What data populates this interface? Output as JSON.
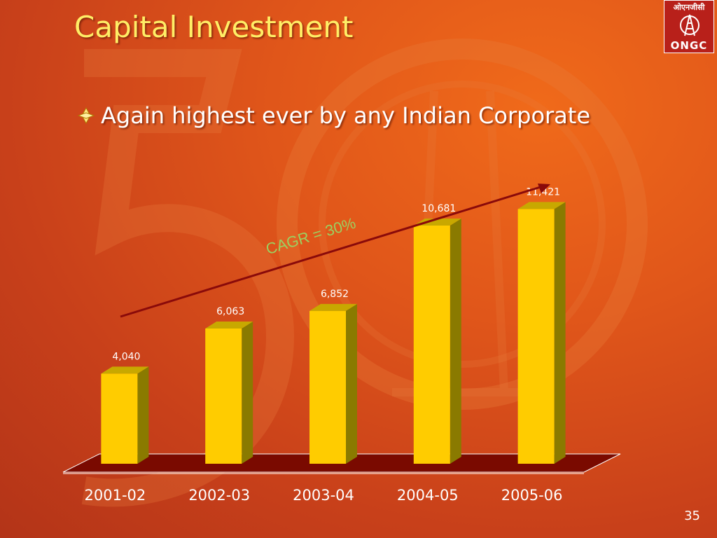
{
  "slide": {
    "title": "Capital Investment",
    "bullet": "Again highest ever by any Indian Corporate",
    "page_number": "35",
    "logo_text_top": "ओएनजीसी",
    "logo_text_bottom": "ONGC"
  },
  "chart_data": {
    "type": "bar",
    "categories": [
      "2001-02",
      "2002-03",
      "2003-04",
      "2004-05",
      "2005-06"
    ],
    "values": [
      4040,
      6063,
      6852,
      10681,
      11421
    ],
    "value_labels": [
      "4,040",
      "6,063",
      "6,852",
      "10,681",
      "11,421"
    ],
    "title": "",
    "xlabel": "",
    "ylabel": "",
    "ylim": [
      0,
      12000
    ],
    "grid": false,
    "annotation": "CAGR = 30%",
    "colors": {
      "bar_front": "#ffcc00",
      "bar_side": "#8a7a00",
      "bar_top": "#c8a800",
      "floor": "#7a0a00",
      "trend_arrow": "#8a0a0a",
      "annotation": "#9cd060"
    }
  }
}
